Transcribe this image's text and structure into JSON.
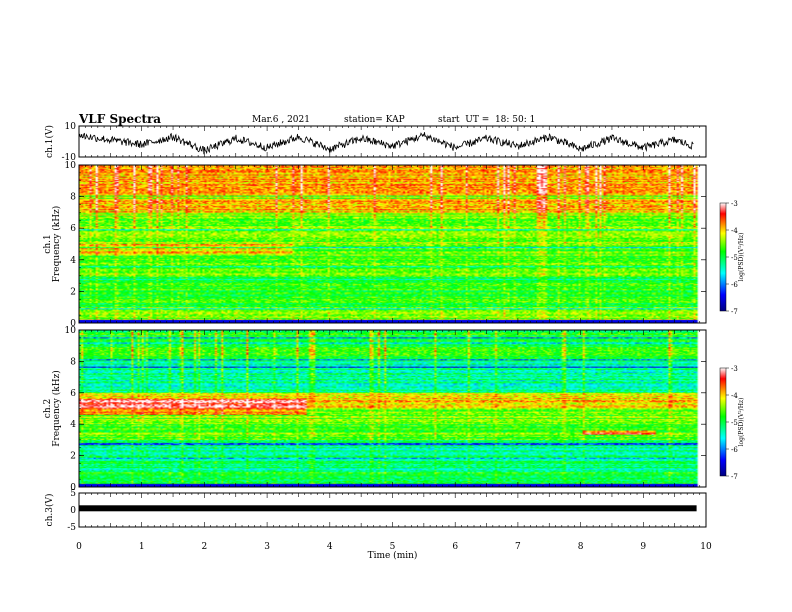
{
  "header": {
    "title": "VLF Spectra",
    "date": "Mar.6 , 2021",
    "station": "station= KAP",
    "start": "start  UT =  18: 50: 1"
  },
  "chart_data": [
    {
      "type": "line",
      "panel": "ch1-waveform",
      "ylabel": "ch.1(V)",
      "ylim": [
        -10,
        10
      ],
      "yticks": [
        "10",
        "-10"
      ],
      "xlim": [
        0,
        10
      ],
      "color": "#000000",
      "approx_x_min": [
        0,
        0.5,
        1.0,
        1.5,
        2.0,
        2.5,
        3.0,
        3.5,
        4.0,
        4.5,
        5.0,
        5.5,
        6.0,
        6.5,
        7.0,
        7.5,
        8.0,
        8.5,
        9.0,
        9.5,
        9.8
      ],
      "approx_y_V": [
        4,
        1,
        -2,
        3,
        -6,
        2,
        -4,
        3,
        -5,
        2,
        -3,
        4,
        -4,
        2,
        -3,
        3,
        -5,
        2,
        -4,
        1,
        -3
      ]
    },
    {
      "type": "heatmap",
      "panel": "ch1-spectrogram",
      "ylabel": "ch.1\nFrequency (kHz)",
      "ylim": [
        0,
        10
      ],
      "yticks": [
        "0",
        "2",
        "4",
        "6",
        "8",
        "10"
      ],
      "xlim": [
        0,
        10
      ],
      "colorbar": {
        "label": "log(PSD)(V²/Hz)",
        "range": [
          -7,
          -3
        ],
        "ticks": [
          "-3",
          "-4",
          "-5",
          "-6",
          "-7"
        ],
        "colors": [
          "#00007f",
          "#0000ff",
          "#00ffff",
          "#00ff00",
          "#ffff00",
          "#ff0000",
          "#ffffff"
        ]
      },
      "approx_levels_by_freq_kHz": {
        "0-1": -4.5,
        "1-3": -4.8,
        "3-5": -4.6,
        "5-7": -4.5,
        "7-10": -3.9
      }
    },
    {
      "type": "heatmap",
      "panel": "ch2-spectrogram",
      "ylabel": "ch.2\nFrequency (kHz)",
      "ylim": [
        0,
        10
      ],
      "yticks": [
        "0",
        "2",
        "4",
        "6",
        "8",
        "10"
      ],
      "xlim": [
        0,
        10
      ],
      "colorbar": {
        "label": "log(PSD)(V²/Hz)",
        "range": [
          -7,
          -3
        ],
        "ticks": [
          "-3",
          "-4",
          "-5",
          "-6",
          "-7"
        ],
        "colors": [
          "#00007f",
          "#0000ff",
          "#00ffff",
          "#00ff00",
          "#ffff00",
          "#ff0000",
          "#ffffff"
        ]
      },
      "approx_levels_by_freq_kHz": {
        "0-1": -4.9,
        "1-3": -5.2,
        "3-5": -4.6,
        "5-6": -4.0,
        "6-8": -5.3,
        "8-10": -4.9
      }
    },
    {
      "type": "line",
      "panel": "ch3-waveform",
      "ylabel": "ch.3(V)",
      "ylim": [
        -5,
        5
      ],
      "yticks": [
        "5",
        "0",
        "-5"
      ],
      "xlim": [
        0,
        10
      ],
      "approx_y_V": 0.5,
      "color": "#000000"
    }
  ],
  "xaxis": {
    "label": "Time  (min)",
    "ticks": [
      "0",
      "1",
      "2",
      "3",
      "4",
      "5",
      "6",
      "7",
      "8",
      "9",
      "10"
    ]
  }
}
